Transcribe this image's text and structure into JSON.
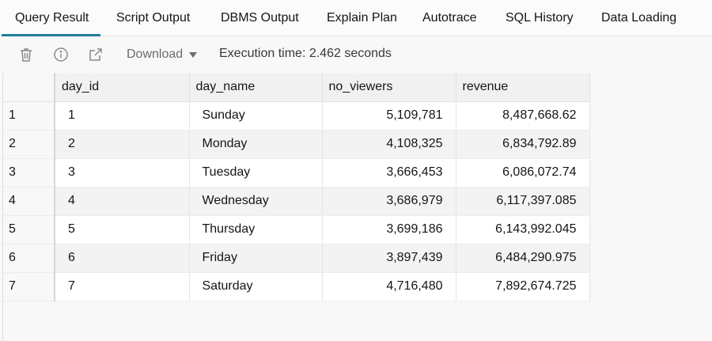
{
  "tabs": [
    {
      "label": "Query Result",
      "active": true
    },
    {
      "label": "Script Output"
    },
    {
      "label": "DBMS Output"
    },
    {
      "label": "Explain Plan"
    },
    {
      "label": "Autotrace"
    },
    {
      "label": "SQL History"
    },
    {
      "label": "Data Loading"
    }
  ],
  "toolbar": {
    "download_label": "Download",
    "execution_time": "Execution time: 2.462 seconds",
    "icons": [
      "trash-icon",
      "info-icon",
      "open-external-icon",
      "chevron-down-icon"
    ]
  },
  "grid": {
    "columns": [
      "day_id",
      "day_name",
      "no_viewers",
      "revenue"
    ],
    "rows": [
      {
        "row": "1",
        "day_id": "1",
        "day_name": "Sunday",
        "no_viewers": "5,109,781",
        "revenue": "8,487,668.62"
      },
      {
        "row": "2",
        "day_id": "2",
        "day_name": "Monday",
        "no_viewers": "4,108,325",
        "revenue": "6,834,792.89"
      },
      {
        "row": "3",
        "day_id": "3",
        "day_name": "Tuesday",
        "no_viewers": "3,666,453",
        "revenue": "6,086,072.74"
      },
      {
        "row": "4",
        "day_id": "4",
        "day_name": "Wednesday",
        "no_viewers": "3,686,979",
        "revenue": "6,117,397.085"
      },
      {
        "row": "5",
        "day_id": "5",
        "day_name": "Thursday",
        "no_viewers": "3,699,186",
        "revenue": "6,143,992.045"
      },
      {
        "row": "6",
        "day_id": "6",
        "day_name": "Friday",
        "no_viewers": "3,897,439",
        "revenue": "6,484,290.975"
      },
      {
        "row": "7",
        "day_id": "7",
        "day_name": "Saturday",
        "no_viewers": "4,716,480",
        "revenue": "7,892,674.725"
      }
    ]
  },
  "colors": {
    "accent": "#227e9e",
    "icon": "#8a8886"
  }
}
